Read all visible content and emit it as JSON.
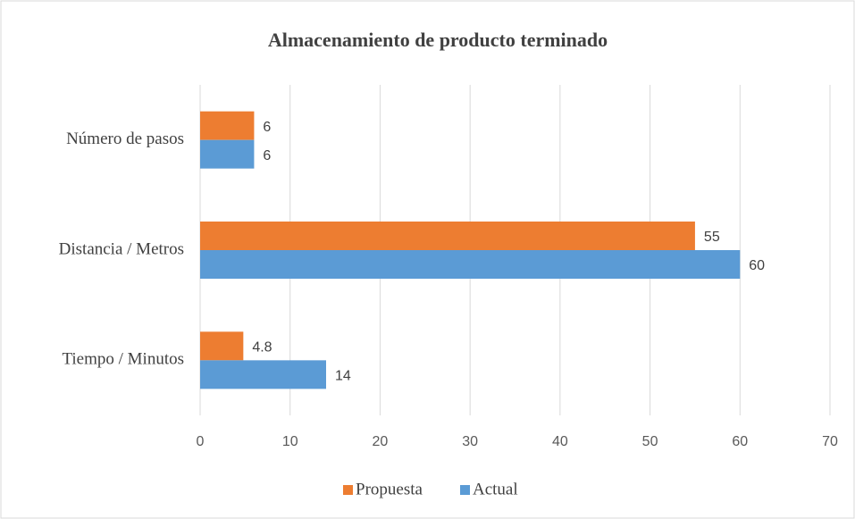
{
  "chart_data": {
    "type": "bar",
    "orientation": "horizontal",
    "title": "Almacenamiento de producto terminado",
    "categories": [
      "Número de pasos",
      "Distancia / Metros",
      "Tiempo / Minutos"
    ],
    "series": [
      {
        "name": "Propuesta",
        "color": "#ed7d31",
        "values": [
          6,
          55,
          4.8
        ]
      },
      {
        "name": "Actual",
        "color": "#5b9bd5",
        "values": [
          6,
          60,
          14
        ]
      }
    ],
    "xlim": [
      0,
      70
    ],
    "xticks": [
      0,
      10,
      20,
      30,
      40,
      50,
      60,
      70
    ],
    "grid": true,
    "legend": "bottom"
  }
}
